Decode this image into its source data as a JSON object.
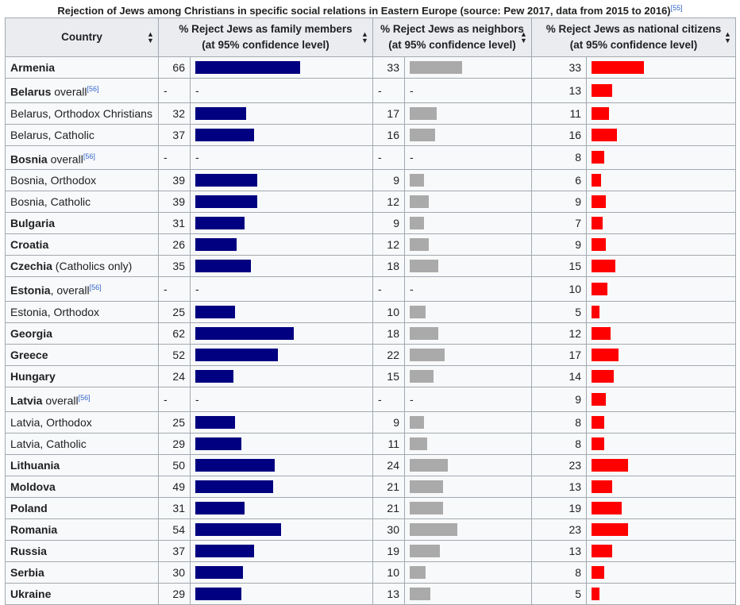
{
  "caption": {
    "text": "Rejection of Jews among Christians in specific social relations in Eastern Europe (source: Pew 2017, data from 2015 to 2016)",
    "ref": "[55]"
  },
  "headers": {
    "country": "Country",
    "family_line1": "% Reject Jews as family members",
    "family_line2": "(at 95% confidence level)",
    "neighbors_line1": "% Reject Jews as neighbors",
    "neighbors_line2": "(at 95% confidence level)",
    "citizens_line1": "% Reject Jews as national citizens",
    "citizens_line2": "(at 95% confidence level)",
    "sort_icon": "sort-up-down-icon"
  },
  "bar_colors": {
    "family": "#000080",
    "neighbors": "#aaaaaa",
    "citizens": "#ff0000"
  },
  "rows": [
    {
      "bold": "Armenia",
      "rest": "",
      "ref": "",
      "family": 66,
      "neighbors": 33,
      "citizens": 33
    },
    {
      "bold": "Belarus",
      "rest": " overall",
      "ref": "[56]",
      "family": "-",
      "neighbors": "-",
      "citizens": 13
    },
    {
      "bold": "",
      "rest": "Belarus, Orthodox Christians",
      "ref": "",
      "family": 32,
      "neighbors": 17,
      "citizens": 11
    },
    {
      "bold": "",
      "rest": "Belarus, Catholic",
      "ref": "",
      "family": 37,
      "neighbors": 16,
      "citizens": 16
    },
    {
      "bold": "Bosnia",
      "rest": " overall",
      "ref": "[56]",
      "family": "-",
      "neighbors": "-",
      "citizens": 8
    },
    {
      "bold": "",
      "rest": "Bosnia, Orthodox",
      "ref": "",
      "family": 39,
      "neighbors": 9,
      "citizens": 6
    },
    {
      "bold": "",
      "rest": "Bosnia, Catholic",
      "ref": "",
      "family": 39,
      "neighbors": 12,
      "citizens": 9
    },
    {
      "bold": "Bulgaria",
      "rest": "",
      "ref": "",
      "family": 31,
      "neighbors": 9,
      "citizens": 7
    },
    {
      "bold": "Croatia",
      "rest": "",
      "ref": "",
      "family": 26,
      "neighbors": 12,
      "citizens": 9
    },
    {
      "bold": "Czechia",
      "rest": " (Catholics only)",
      "ref": "",
      "family": 35,
      "neighbors": 18,
      "citizens": 15
    },
    {
      "bold": "Estonia",
      "rest": ", overall",
      "ref": "[56]",
      "family": "-",
      "neighbors": "-",
      "citizens": 10
    },
    {
      "bold": "",
      "rest": "Estonia, Orthodox",
      "ref": "",
      "family": 25,
      "neighbors": 10,
      "citizens": 5
    },
    {
      "bold": "Georgia",
      "rest": "",
      "ref": "",
      "family": 62,
      "neighbors": 18,
      "citizens": 12
    },
    {
      "bold": "Greece",
      "rest": "",
      "ref": "",
      "family": 52,
      "neighbors": 22,
      "citizens": 17
    },
    {
      "bold": "Hungary",
      "rest": "",
      "ref": "",
      "family": 24,
      "neighbors": 15,
      "citizens": 14
    },
    {
      "bold": "Latvia",
      "rest": " overall",
      "ref": "[56]",
      "family": "-",
      "neighbors": "-",
      "citizens": 9
    },
    {
      "bold": "",
      "rest": "Latvia, Orthodox",
      "ref": "",
      "family": 25,
      "neighbors": 9,
      "citizens": 8
    },
    {
      "bold": "",
      "rest": "Latvia, Catholic",
      "ref": "",
      "family": 29,
      "neighbors": 11,
      "citizens": 8
    },
    {
      "bold": "Lithuania",
      "rest": "",
      "ref": "",
      "family": 50,
      "neighbors": 24,
      "citizens": 23
    },
    {
      "bold": "Moldova",
      "rest": "",
      "ref": "",
      "family": 49,
      "neighbors": 21,
      "citizens": 13
    },
    {
      "bold": "Poland",
      "rest": "",
      "ref": "",
      "family": 31,
      "neighbors": 21,
      "citizens": 19
    },
    {
      "bold": "Romania",
      "rest": "",
      "ref": "",
      "family": 54,
      "neighbors": 30,
      "citizens": 23
    },
    {
      "bold": "Russia",
      "rest": "",
      "ref": "",
      "family": 37,
      "neighbors": 19,
      "citizens": 13
    },
    {
      "bold": "Serbia",
      "rest": "",
      "ref": "",
      "family": 30,
      "neighbors": 10,
      "citizens": 8
    },
    {
      "bold": "Ukraine",
      "rest": "",
      "ref": "",
      "family": 29,
      "neighbors": 13,
      "citizens": 5
    }
  ]
}
